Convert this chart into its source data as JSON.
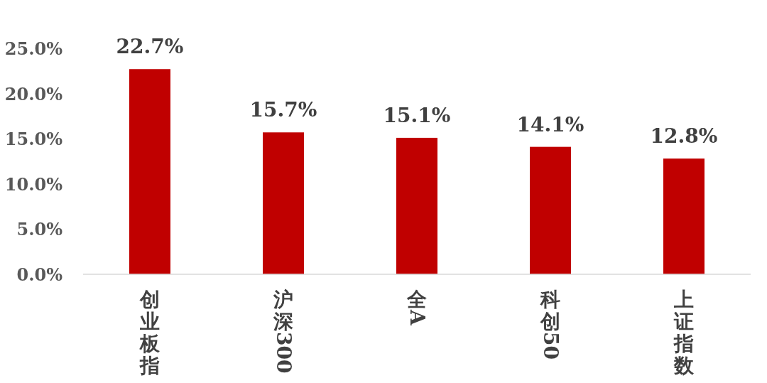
{
  "chart_data": {
    "type": "bar",
    "categories": [
      "创业板指",
      "沪深300",
      "全A",
      "科创50",
      "上证指数"
    ],
    "values": [
      22.7,
      15.7,
      15.1,
      14.1,
      12.8
    ],
    "value_labels": [
      "22.7%",
      "15.7%",
      "15.1%",
      "14.1%",
      "12.8%"
    ],
    "color": "#c00000",
    "ylim": [
      0,
      25
    ],
    "yticks": [
      {
        "value": 0,
        "label": "0.0%"
      },
      {
        "value": 5,
        "label": "5.0%"
      },
      {
        "value": 10,
        "label": "10.0%"
      },
      {
        "value": 15,
        "label": "15.0%"
      },
      {
        "value": 20,
        "label": "20.0%"
      },
      {
        "value": 25,
        "label": "25.0%"
      }
    ],
    "grid": false
  }
}
